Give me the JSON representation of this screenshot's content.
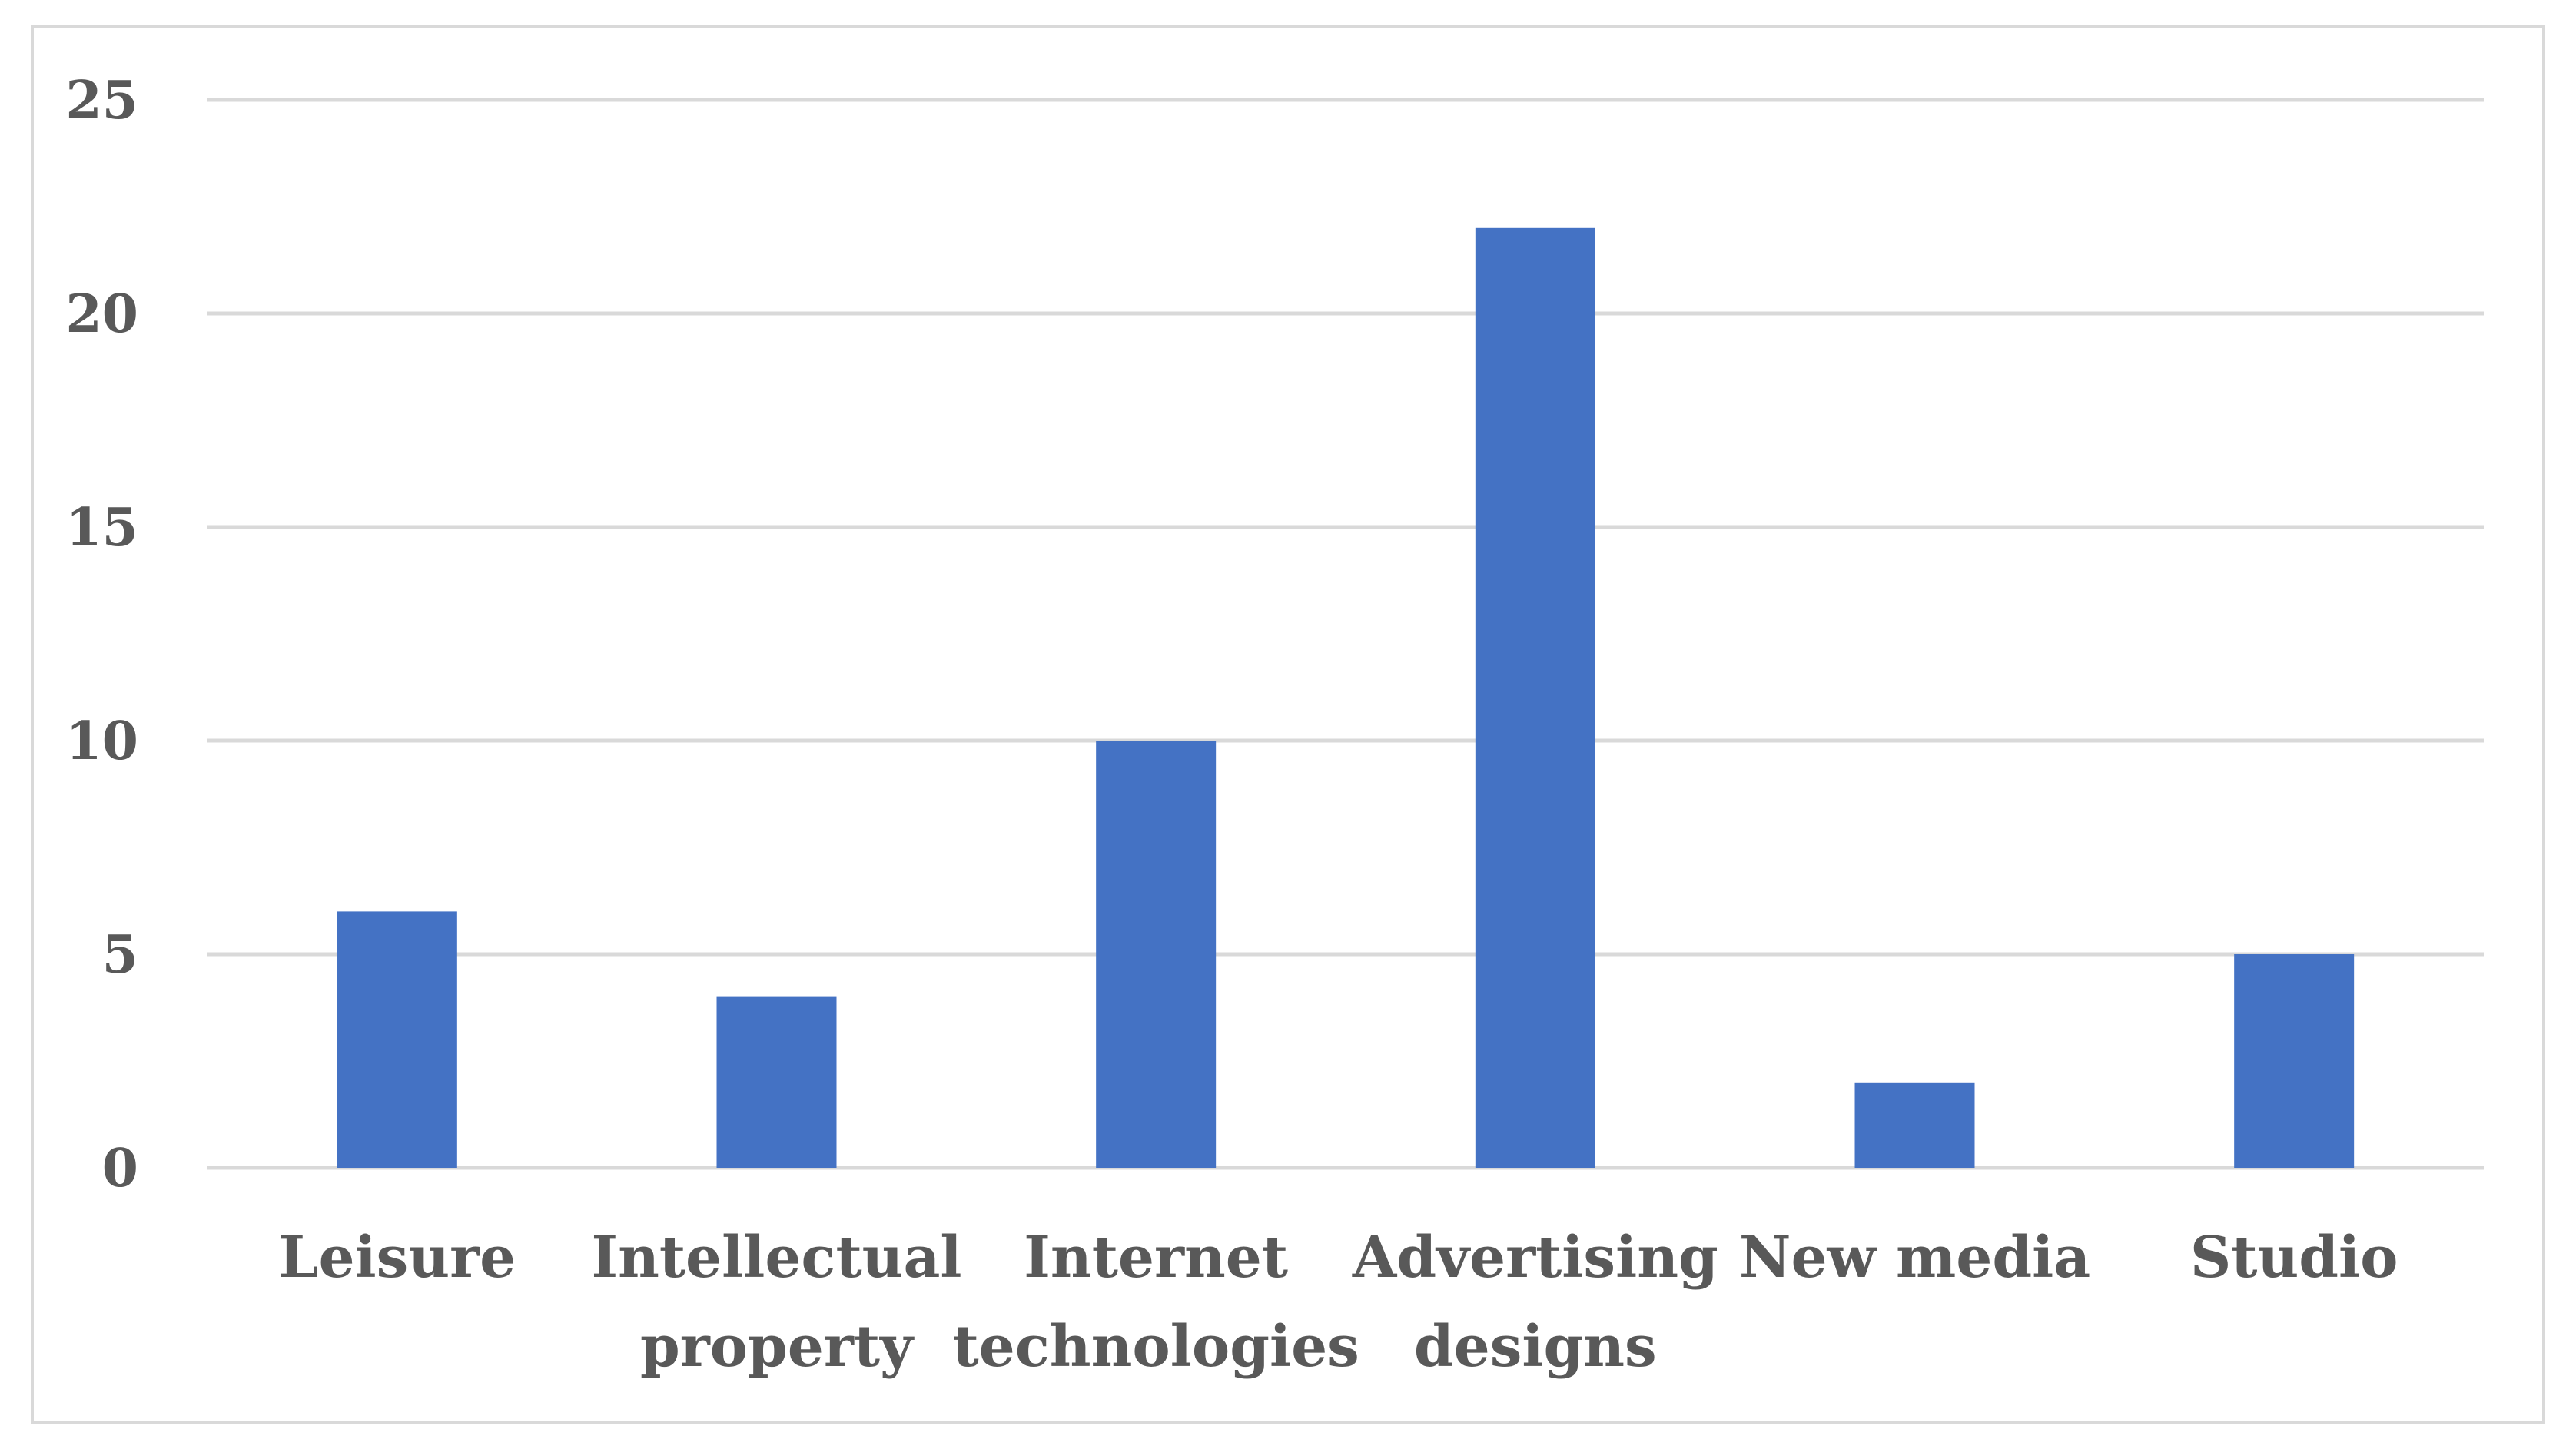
{
  "chart_data": {
    "type": "bar",
    "title": "",
    "xlabel": "",
    "ylabel": "",
    "categories": [
      [
        "Leisure"
      ],
      [
        "Intellectual",
        "property"
      ],
      [
        "Internet",
        "technologies"
      ],
      [
        "Advertising",
        "designs"
      ],
      [
        "New media"
      ],
      [
        "Studio"
      ]
    ],
    "values": [
      6,
      4,
      10,
      22,
      2,
      5
    ],
    "ylim": [
      0,
      25
    ],
    "yticks": [
      0,
      5,
      10,
      15,
      20,
      25
    ],
    "grid": true,
    "legend": "none",
    "colors": {
      "bar": "#4472c4",
      "grid": "#d9d9d9",
      "text": "#595959",
      "frame": "#d9d9d9"
    }
  }
}
